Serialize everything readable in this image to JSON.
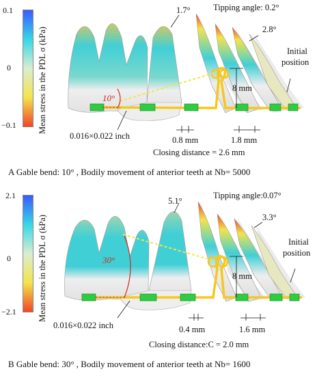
{
  "panels": [
    {
      "id": "A",
      "colorbar": {
        "title": "Mean stress in the PDL σ (kPa)",
        "max": "0.1",
        "mid": "0",
        "min": "−0.1"
      },
      "labels": {
        "angle_left": "1.7°",
        "tipping": "Tipping angle: 0.2°",
        "angle_right": "2.8°",
        "initial": "Initial",
        "position": "position",
        "height": "8 mm",
        "gable_angle": "10°",
        "wire": "0.016×0.022 inch",
        "gap_left": "0.8 mm",
        "gap_right": "1.8 mm",
        "closing": "Closing distance = 2.6 mm"
      },
      "caption": "A  Gable bend: 10° , Bodily movement of anterior teeth at Nb= 5000"
    },
    {
      "id": "B",
      "colorbar": {
        "title": "Mean stress in the PDL σ (kPa)",
        "max": "2.1",
        "mid": "0",
        "min": "−2.1"
      },
      "labels": {
        "angle_left": "5.1°",
        "tipping": "Tipping angle:0.07°",
        "angle_right": "3.3°",
        "initial": "Initial",
        "position": "position",
        "height": "8 mm",
        "gable_angle": "30°",
        "wire": "0.016×0.022 inch",
        "gap_left": "0.4 mm",
        "gap_right": "1.6 mm",
        "closing": "Closing distance:C = 2.0 mm"
      },
      "caption": "B  Gable bend: 30° , Bodily movement of anterior teeth at Nb= 1600"
    }
  ],
  "colors": {
    "colorbar_top": "#3a5bff",
    "colorbar_upper": "#36d7e6",
    "colorbar_mid": "#d9eecf",
    "colorbar_lower": "#f3e44a",
    "colorbar_bottom": "#f2462a",
    "wire": "#f7c71c",
    "bracket": "#2ecc40",
    "angle_red": "#d0281d",
    "tooth_cyan": "#41cfd6",
    "tooth_white": "#eeeeee"
  }
}
